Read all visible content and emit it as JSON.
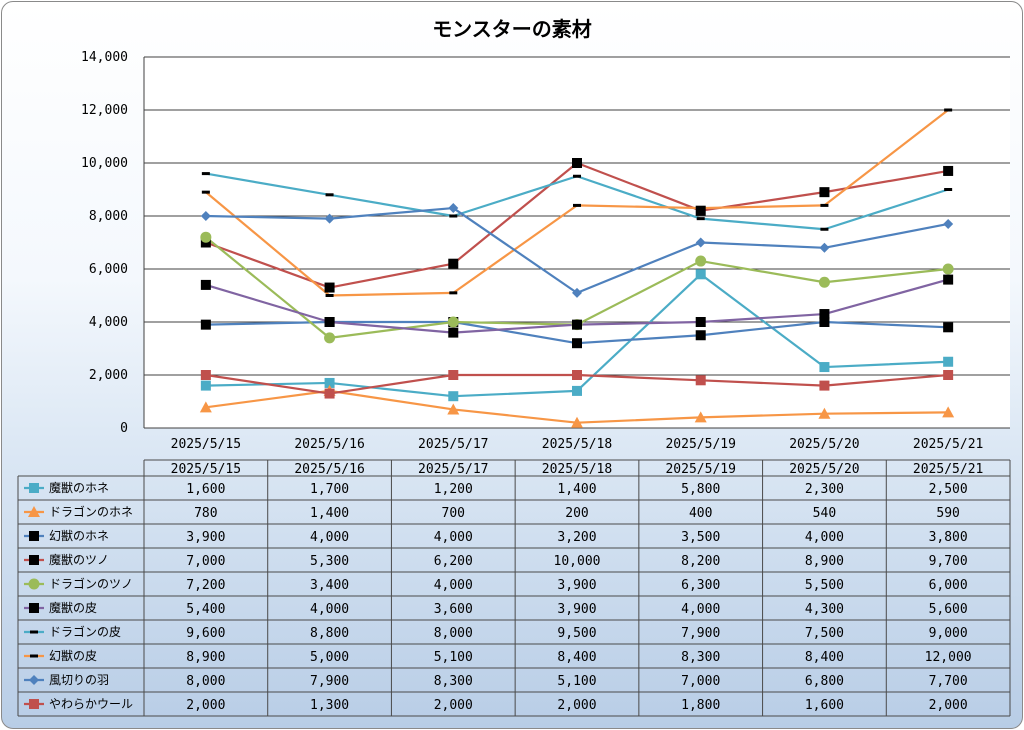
{
  "chart_data": {
    "type": "line",
    "title": "モンスターの素材",
    "categories": [
      "2025/5/15",
      "2025/5/16",
      "2025/5/17",
      "2025/5/18",
      "2025/5/19",
      "2025/5/20",
      "2025/5/21"
    ],
    "ylim": [
      0,
      14000
    ],
    "yticks": [
      "0",
      "2,000",
      "4,000",
      "6,000",
      "8,000",
      "10,000",
      "12,000",
      "14,000"
    ],
    "grid": true,
    "legend": "data-table",
    "series": [
      {
        "name": "魔獣のホネ",
        "color": "#4bacc6",
        "marker": "square",
        "values": [
          1600,
          1700,
          1200,
          1400,
          5800,
          2300,
          2500
        ],
        "labels": [
          "1,600",
          "1,700",
          "1,200",
          "1,400",
          "5,800",
          "2,300",
          "2,500"
        ]
      },
      {
        "name": "ドラゴンのホネ",
        "color": "#f79646",
        "marker": "triangle",
        "values": [
          780,
          1400,
          700,
          200,
          400,
          540,
          590
        ],
        "labels": [
          "780",
          "1,400",
          "700",
          "200",
          "400",
          "540",
          "590"
        ]
      },
      {
        "name": "幻獣のホネ",
        "color": "#4f81bd",
        "marker": "square-black",
        "values": [
          3900,
          4000,
          4000,
          3200,
          3500,
          4000,
          3800
        ],
        "labels": [
          "3,900",
          "4,000",
          "4,000",
          "3,200",
          "3,500",
          "4,000",
          "3,800"
        ]
      },
      {
        "name": "魔獣のツノ",
        "color": "#c0504d",
        "marker": "square-black",
        "values": [
          7000,
          5300,
          6200,
          10000,
          8200,
          8900,
          9700
        ],
        "labels": [
          "7,000",
          "5,300",
          "6,200",
          "10,000",
          "8,200",
          "8,900",
          "9,700"
        ]
      },
      {
        "name": "ドラゴンのツノ",
        "color": "#9bbb59",
        "marker": "circle",
        "values": [
          7200,
          3400,
          4000,
          3900,
          6300,
          5500,
          6000
        ],
        "labels": [
          "7,200",
          "3,400",
          "4,000",
          "3,900",
          "6,300",
          "5,500",
          "6,000"
        ]
      },
      {
        "name": "魔獣の皮",
        "color": "#8064a2",
        "marker": "square-black",
        "values": [
          5400,
          4000,
          3600,
          3900,
          4000,
          4300,
          5600
        ],
        "labels": [
          "5,400",
          "4,000",
          "3,600",
          "3,900",
          "4,000",
          "4,300",
          "5,600"
        ]
      },
      {
        "name": "ドラゴンの皮",
        "color": "#4bacc6",
        "marker": "dash",
        "values": [
          9600,
          8800,
          8000,
          9500,
          7900,
          7500,
          9000
        ],
        "labels": [
          "9,600",
          "8,800",
          "8,000",
          "9,500",
          "7,900",
          "7,500",
          "9,000"
        ]
      },
      {
        "name": "幻獣の皮",
        "color": "#f79646",
        "marker": "dash",
        "values": [
          8900,
          5000,
          5100,
          8400,
          8300,
          8400,
          12000
        ],
        "labels": [
          "8,900",
          "5,000",
          "5,100",
          "8,400",
          "8,300",
          "8,400",
          "12,000"
        ]
      },
      {
        "name": "風切りの羽",
        "color": "#4f81bd",
        "marker": "diamond",
        "values": [
          8000,
          7900,
          8300,
          5100,
          7000,
          6800,
          7700
        ],
        "labels": [
          "8,000",
          "7,900",
          "8,300",
          "5,100",
          "7,000",
          "6,800",
          "7,700"
        ]
      },
      {
        "name": "やわらかウール",
        "color": "#c0504d",
        "marker": "square",
        "values": [
          2000,
          1300,
          2000,
          2000,
          1800,
          1600,
          2000
        ],
        "labels": [
          "2,000",
          "1,300",
          "2,000",
          "2,000",
          "1,800",
          "1,600",
          "2,000"
        ]
      }
    ]
  }
}
